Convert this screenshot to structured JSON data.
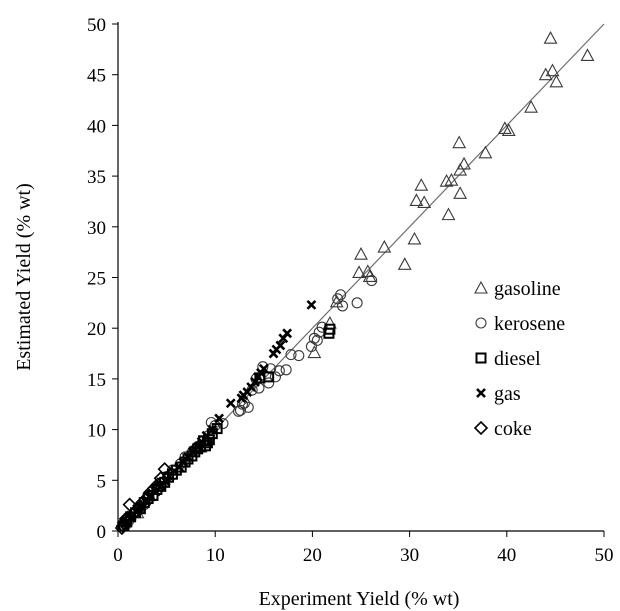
{
  "chart_data": {
    "type": "scatter",
    "title": "",
    "xlabel": "Experiment Yield (% wt)",
    "ylabel": "Estimated  Yield (% wt)",
    "xlim": [
      0,
      50
    ],
    "ylim": [
      0,
      50
    ],
    "xticks": [
      0,
      10,
      20,
      30,
      40,
      50
    ],
    "yticks": [
      0,
      5,
      10,
      15,
      20,
      25,
      30,
      35,
      40,
      45,
      50
    ],
    "grid": false,
    "legend_position": "right",
    "reference_line": {
      "from": [
        0,
        0
      ],
      "to": [
        50,
        50
      ]
    },
    "series": [
      {
        "name": "gasoline",
        "marker": "triangle",
        "points": [
          [
            44.5,
            48.6
          ],
          [
            48.3,
            46.9
          ],
          [
            45.1,
            44.3
          ],
          [
            44.7,
            45.4
          ],
          [
            44.0,
            45.0
          ],
          [
            42.5,
            41.8
          ],
          [
            40.2,
            39.5
          ],
          [
            39.8,
            39.7
          ],
          [
            37.8,
            37.3
          ],
          [
            35.6,
            36.2
          ],
          [
            35.2,
            35.6
          ],
          [
            35.1,
            38.3
          ],
          [
            34.3,
            34.6
          ],
          [
            33.8,
            34.5
          ],
          [
            35.2,
            33.3
          ],
          [
            34.0,
            31.2
          ],
          [
            31.2,
            34.1
          ],
          [
            31.5,
            32.4
          ],
          [
            30.7,
            32.6
          ],
          [
            30.5,
            28.8
          ],
          [
            29.5,
            26.3
          ],
          [
            27.4,
            28.0
          ],
          [
            25.0,
            27.3
          ],
          [
            24.8,
            25.5
          ],
          [
            25.7,
            25.6
          ],
          [
            25.9,
            25.1
          ],
          [
            22.5,
            22.6
          ],
          [
            21.8,
            20.5
          ],
          [
            20.2,
            17.6
          ],
          [
            8.5,
            8.3
          ],
          [
            2.0,
            1.8
          ]
        ]
      },
      {
        "name": "kerosene",
        "marker": "circle",
        "points": [
          [
            26.1,
            24.7
          ],
          [
            24.6,
            22.5
          ],
          [
            23.1,
            22.2
          ],
          [
            22.9,
            23.3
          ],
          [
            22.6,
            22.9
          ],
          [
            21.0,
            20.1
          ],
          [
            20.7,
            19.6
          ],
          [
            20.5,
            18.8
          ],
          [
            20.2,
            19.0
          ],
          [
            19.9,
            18.2
          ],
          [
            18.6,
            17.3
          ],
          [
            17.8,
            17.4
          ],
          [
            17.3,
            15.9
          ],
          [
            16.6,
            15.8
          ],
          [
            16.2,
            15.2
          ],
          [
            15.7,
            16.0
          ],
          [
            15.5,
            14.6
          ],
          [
            14.9,
            16.2
          ],
          [
            14.5,
            14.1
          ],
          [
            14.2,
            15.0
          ],
          [
            13.8,
            13.9
          ],
          [
            13.4,
            12.2
          ],
          [
            13.0,
            12.6
          ],
          [
            12.8,
            12.5
          ],
          [
            12.6,
            11.9
          ],
          [
            12.4,
            11.8
          ],
          [
            10.8,
            10.6
          ],
          [
            10.0,
            10.4
          ],
          [
            9.6,
            10.7
          ],
          [
            9.3,
            9.4
          ],
          [
            8.7,
            8.8
          ],
          [
            8.1,
            8.2
          ],
          [
            7.7,
            7.9
          ],
          [
            6.9,
            7.3
          ],
          [
            6.4,
            6.6
          ],
          [
            5.6,
            6.0
          ],
          [
            5.1,
            5.4
          ],
          [
            4.6,
            4.8
          ],
          [
            4.1,
            4.1
          ],
          [
            3.6,
            3.5
          ],
          [
            3.2,
            3.3
          ],
          [
            2.7,
            2.6
          ],
          [
            2.3,
            2.3
          ],
          [
            1.6,
            1.7
          ],
          [
            1.1,
            1.0
          ],
          [
            0.8,
            0.6
          ]
        ]
      },
      {
        "name": "diesel",
        "marker": "square",
        "points": [
          [
            21.8,
            19.9
          ],
          [
            21.7,
            19.5
          ],
          [
            15.5,
            15.2
          ],
          [
            14.6,
            15.1
          ],
          [
            10.2,
            10.1
          ],
          [
            9.7,
            9.6
          ],
          [
            9.4,
            9.0
          ],
          [
            9.2,
            8.7
          ],
          [
            9.0,
            8.4
          ],
          [
            8.8,
            8.9
          ],
          [
            8.5,
            8.3
          ],
          [
            8.2,
            8.1
          ],
          [
            7.9,
            7.8
          ],
          [
            7.6,
            7.4
          ],
          [
            7.2,
            7.1
          ],
          [
            6.9,
            6.8
          ],
          [
            6.5,
            6.3
          ],
          [
            6.0,
            6.0
          ],
          [
            5.6,
            5.6
          ],
          [
            5.2,
            5.3
          ],
          [
            4.8,
            4.8
          ],
          [
            4.4,
            4.4
          ],
          [
            4.0,
            4.1
          ],
          [
            3.6,
            3.5
          ],
          [
            3.1,
            3.2
          ],
          [
            2.7,
            2.8
          ],
          [
            2.3,
            2.2
          ],
          [
            1.8,
            1.8
          ],
          [
            1.3,
            1.4
          ],
          [
            0.9,
            0.9
          ],
          [
            0.6,
            0.5
          ]
        ]
      },
      {
        "name": "gas",
        "marker": "x",
        "points": [
          [
            19.9,
            22.3
          ],
          [
            17.4,
            19.5
          ],
          [
            17.0,
            19.0
          ],
          [
            16.7,
            18.3
          ],
          [
            16.3,
            17.9
          ],
          [
            16.0,
            17.5
          ],
          [
            15.0,
            16.0
          ],
          [
            14.7,
            15.6
          ],
          [
            14.4,
            15.2
          ],
          [
            14.1,
            14.7
          ],
          [
            13.7,
            14.2
          ],
          [
            13.3,
            13.7
          ],
          [
            12.9,
            13.4
          ],
          [
            12.7,
            13.1
          ],
          [
            11.6,
            12.6
          ],
          [
            10.4,
            11.1
          ],
          [
            9.7,
            10.0
          ],
          [
            9.1,
            9.4
          ],
          [
            8.6,
            8.8
          ],
          [
            8.2,
            8.3
          ],
          [
            7.7,
            7.8
          ],
          [
            7.2,
            7.3
          ],
          [
            6.7,
            6.8
          ],
          [
            6.3,
            6.3
          ],
          [
            5.8,
            5.9
          ],
          [
            5.3,
            5.4
          ],
          [
            4.9,
            4.9
          ],
          [
            4.4,
            4.4
          ],
          [
            3.9,
            3.9
          ],
          [
            3.4,
            3.4
          ],
          [
            2.9,
            2.9
          ],
          [
            2.4,
            2.4
          ],
          [
            1.9,
            1.9
          ],
          [
            1.4,
            1.4
          ],
          [
            1.0,
            0.9
          ]
        ]
      },
      {
        "name": "coke",
        "marker": "diamond",
        "points": [
          [
            4.8,
            6.1
          ],
          [
            4.4,
            5.2
          ],
          [
            4.1,
            4.6
          ],
          [
            3.7,
            4.2
          ],
          [
            3.3,
            3.8
          ],
          [
            3.0,
            3.3
          ],
          [
            2.6,
            2.9
          ],
          [
            2.2,
            2.5
          ],
          [
            1.9,
            2.0
          ],
          [
            1.5,
            1.6
          ],
          [
            1.2,
            2.6
          ],
          [
            1.0,
            1.3
          ],
          [
            0.8,
            1.2
          ],
          [
            0.6,
            0.8
          ],
          [
            0.5,
            0.5
          ],
          [
            0.4,
            0.3
          ]
        ]
      }
    ]
  },
  "legend": {
    "items": [
      {
        "key": "gasoline",
        "label": "gasoline"
      },
      {
        "key": "kerosene",
        "label": "kerosene"
      },
      {
        "key": "diesel",
        "label": "diesel"
      },
      {
        "key": "gas",
        "label": "gas"
      },
      {
        "key": "coke",
        "label": "coke"
      }
    ]
  },
  "colors": {
    "marker": "#3a3a3a",
    "axis": "#000000",
    "reference_line": "#6e6e6e",
    "background": "#ffffff"
  }
}
